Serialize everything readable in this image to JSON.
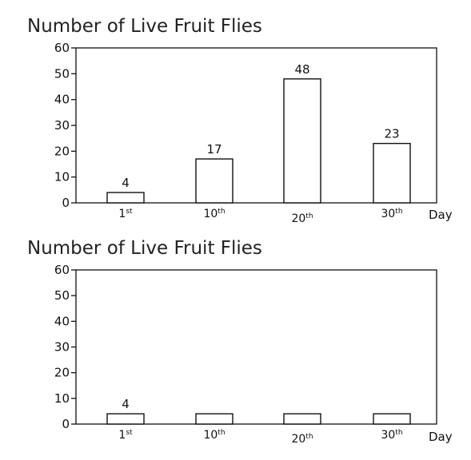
{
  "chart_data": [
    {
      "type": "bar",
      "title": "Number of Live Fruit Flies",
      "categories": [
        {
          "base": "1",
          "suffix": "st"
        },
        {
          "base": "10",
          "suffix": "th"
        },
        {
          "base": "20",
          "suffix": "th"
        },
        {
          "base": "30",
          "suffix": "th"
        }
      ],
      "values": [
        4,
        17,
        48,
        23
      ],
      "data_labels": [
        "4",
        "17",
        "48",
        "23"
      ],
      "xlabel": "Day",
      "ylabel": "",
      "ylim": [
        0,
        60
      ],
      "yticks": [
        "0",
        "10",
        "20",
        "30",
        "40",
        "50",
        "60"
      ],
      "grid": false,
      "colors": {
        "bar_fill": "#ffffff",
        "bar_stroke": "#111111",
        "axis": "#111111"
      }
    },
    {
      "type": "bar",
      "title": "Number of Live Fruit Flies",
      "categories": [
        {
          "base": "1",
          "suffix": "st"
        },
        {
          "base": "10",
          "suffix": "th"
        },
        {
          "base": "20",
          "suffix": "th"
        },
        {
          "base": "30",
          "suffix": "th"
        }
      ],
      "values": [
        4,
        4,
        4,
        4
      ],
      "data_labels": [
        "4",
        "",
        "",
        ""
      ],
      "xlabel": "Day",
      "ylabel": "",
      "ylim": [
        0,
        60
      ],
      "yticks": [
        "0",
        "10",
        "20",
        "30",
        "40",
        "50",
        "60"
      ],
      "grid": false,
      "colors": {
        "bar_fill": "#ffffff",
        "bar_stroke": "#111111",
        "axis": "#111111"
      }
    }
  ]
}
